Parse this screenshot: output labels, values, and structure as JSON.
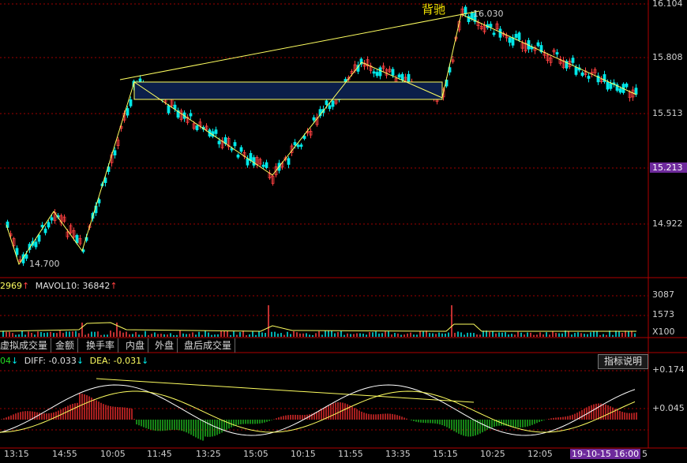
{
  "colors": {
    "up": "#ff4040",
    "down": "#00e8e8",
    "line": "#ffff60",
    "grid": "#a00000",
    "bull": "#ff3030",
    "bear": "#22cc22"
  },
  "annotations": {
    "divergence": "背驰",
    "high": "16.030",
    "low": "14.700"
  },
  "price_axis": {
    "ticks": [
      "16.104",
      "15.808",
      "15.513",
      "15.213",
      "14.922"
    ],
    "highlight": "15.213"
  },
  "volume_panel": {
    "ma5_value": "2969",
    "ma10_label": "MAVOL10:",
    "ma10_value": "36842",
    "axis": [
      "3087",
      "1573"
    ],
    "unit": "X100"
  },
  "indicator_tabs": [
    "虚拟成交量",
    "金额",
    "换手率",
    "内盘",
    "外盘",
    "盘后成交量"
  ],
  "macd_panel": {
    "macd_value": "04",
    "diff_label": "DIFF:",
    "diff_value": "-0.033",
    "dea_label": "DEA:",
    "dea_value": "-0.031",
    "help_label": "指标说明",
    "axis": [
      "+0.174",
      "+0.045"
    ]
  },
  "time_axis": [
    "13:15",
    "14:55",
    "10:05",
    "11:45",
    "13:25",
    "15:05",
    "10:15",
    "11:55",
    "13:35",
    "15:15",
    "10:25",
    "12:05"
  ],
  "cursor_date": "19-10-15 16:00",
  "cursor_tail": "5"
}
